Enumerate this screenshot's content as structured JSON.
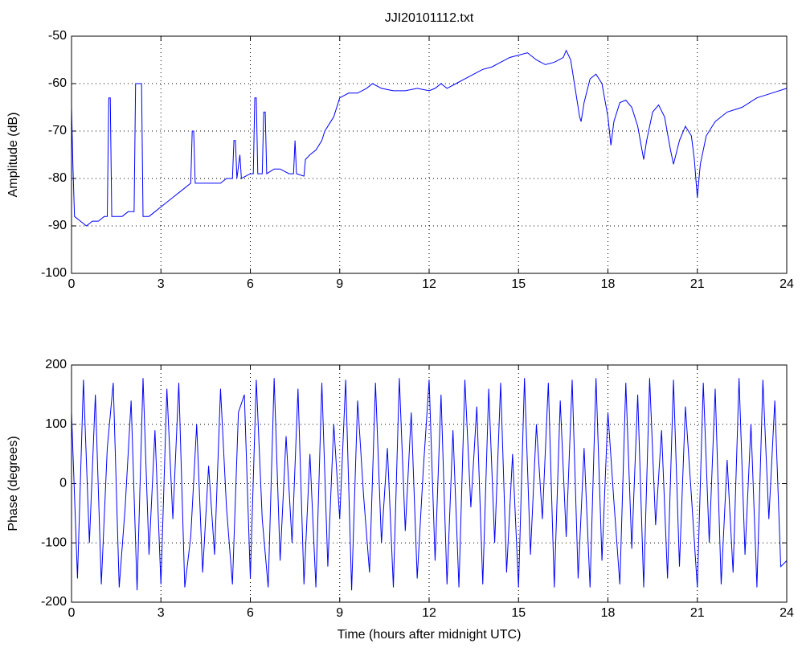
{
  "chart_data": [
    {
      "type": "line",
      "title": "JJI20101112.txt",
      "ylabel": "Amplitude (dB)",
      "color": "#0000ff",
      "grid": true,
      "xlim": [
        0,
        24
      ],
      "xticks": [
        0,
        3,
        6,
        9,
        12,
        15,
        18,
        21,
        24
      ],
      "ylim": [
        -100,
        -50
      ],
      "yticks": [
        -100,
        -90,
        -80,
        -70,
        -60,
        -50
      ],
      "x": [
        0,
        0.05,
        0.1,
        0.3,
        0.5,
        0.7,
        0.9,
        1.1,
        1.2,
        1.25,
        1.3,
        1.35,
        1.5,
        1.7,
        1.9,
        2.1,
        2.15,
        2.35,
        2.4,
        2.6,
        2.8,
        3.0,
        3.2,
        3.4,
        3.6,
        3.8,
        4.0,
        4.05,
        4.1,
        4.15,
        4.4,
        4.6,
        4.8,
        5.0,
        5.2,
        5.4,
        5.45,
        5.5,
        5.55,
        5.65,
        5.7,
        6.0,
        6.1,
        6.15,
        6.2,
        6.25,
        6.4,
        6.45,
        6.5,
        6.55,
        6.8,
        7.0,
        7.3,
        7.45,
        7.5,
        7.55,
        7.8,
        7.85,
        8.0,
        8.2,
        8.4,
        8.5,
        8.7,
        8.8,
        9.0,
        9.3,
        9.6,
        9.9,
        10.1,
        10.4,
        10.8,
        11.2,
        11.6,
        12.0,
        12.2,
        12.4,
        12.6,
        12.9,
        13.2,
        13.5,
        13.8,
        14.1,
        14.4,
        14.7,
        15.0,
        15.3,
        15.6,
        15.9,
        16.2,
        16.5,
        16.6,
        16.75,
        16.9,
        17.05,
        17.1,
        17.2,
        17.4,
        17.6,
        17.8,
        18.0,
        18.1,
        18.2,
        18.4,
        18.6,
        18.8,
        19.0,
        19.2,
        19.3,
        19.5,
        19.7,
        19.9,
        20.1,
        20.2,
        20.4,
        20.6,
        20.8,
        20.9,
        21.0,
        21.1,
        21.3,
        21.6,
        22.0,
        22.5,
        23.0,
        23.5,
        24.0
      ],
      "values": [
        -65,
        -78,
        -88,
        -89,
        -90,
        -89,
        -89,
        -88,
        -88,
        -63,
        -63,
        -88,
        -88,
        -88,
        -87,
        -87,
        -60,
        -60,
        -88,
        -88,
        -87,
        -86,
        -85,
        -84,
        -83,
        -82,
        -81,
        -70,
        -70,
        -81,
        -81,
        -81,
        -81,
        -81,
        -80,
        -80,
        -72,
        -72,
        -80,
        -75,
        -80,
        -79,
        -79,
        -63,
        -63,
        -79,
        -79,
        -66,
        -66,
        -79,
        -78,
        -78,
        -79,
        -79,
        -72,
        -79,
        -79.5,
        -76,
        -75,
        -74,
        -72,
        -70,
        -68,
        -67,
        -63,
        -62,
        -62,
        -61,
        -60,
        -61,
        -61.5,
        -61.5,
        -61,
        -61.5,
        -61,
        -60,
        -61,
        -60,
        -59,
        -58,
        -57,
        -56.5,
        -55.5,
        -54.5,
        -54,
        -53.5,
        -55,
        -56,
        -55.5,
        -54.5,
        -53,
        -55,
        -61,
        -67,
        -68,
        -64,
        -59,
        -58,
        -60,
        -67,
        -73,
        -68,
        -64,
        -63.5,
        -65,
        -69,
        -76,
        -72,
        -66,
        -64.5,
        -67,
        -74,
        -77,
        -72,
        -69,
        -71,
        -76,
        -84,
        -77,
        -71,
        -68,
        -66,
        -65,
        -63,
        -62,
        -61
      ]
    },
    {
      "type": "line",
      "ylabel": "Phase (degrees)",
      "xlabel": "Time (hours after midnight UTC)",
      "color": "#0000ff",
      "grid": true,
      "xlim": [
        0,
        24
      ],
      "xticks": [
        0,
        3,
        6,
        9,
        12,
        15,
        18,
        21,
        24
      ],
      "ylim": [
        -200,
        200
      ],
      "yticks": [
        -200,
        -100,
        0,
        100,
        200
      ],
      "x": [
        0,
        0.2,
        0.4,
        0.6,
        0.8,
        1,
        1.2,
        1.4,
        1.6,
        1.8,
        2,
        2.2,
        2.4,
        2.6,
        2.8,
        3,
        3.2,
        3.4,
        3.6,
        3.8,
        4,
        4.2,
        4.4,
        4.6,
        4.8,
        5,
        5.2,
        5.4,
        5.6,
        5.8,
        6,
        6.2,
        6.4,
        6.6,
        6.8,
        7,
        7.2,
        7.4,
        7.6,
        7.8,
        8,
        8.2,
        8.4,
        8.6,
        8.8,
        9,
        9.2,
        9.4,
        9.6,
        9.8,
        10,
        10.2,
        10.4,
        10.6,
        10.8,
        11,
        11.2,
        11.4,
        11.6,
        11.8,
        12,
        12.2,
        12.4,
        12.6,
        12.8,
        13,
        13.2,
        13.4,
        13.6,
        13.8,
        14,
        14.2,
        14.4,
        14.6,
        14.8,
        15,
        15.2,
        15.4,
        15.6,
        15.8,
        16,
        16.2,
        16.4,
        16.6,
        16.8,
        17,
        17.2,
        17.4,
        17.6,
        17.8,
        18,
        18.2,
        18.4,
        18.6,
        18.8,
        19,
        19.2,
        19.4,
        19.6,
        19.8,
        20,
        20.2,
        20.4,
        20.6,
        20.8,
        21,
        21.2,
        21.4,
        21.6,
        21.8,
        22,
        22.2,
        22.4,
        22.6,
        22.8,
        23,
        23.2,
        23.4,
        23.6,
        23.8,
        24
      ],
      "values": [
        120,
        -160,
        175,
        -100,
        150,
        -170,
        60,
        170,
        -175,
        -40,
        140,
        -180,
        178,
        -120,
        90,
        -170,
        160,
        -60,
        170,
        -175,
        -90,
        100,
        -150,
        30,
        -120,
        160,
        -40,
        -170,
        120,
        150,
        -160,
        175,
        -60,
        -175,
        178,
        -130,
        80,
        -100,
        160,
        -170,
        50,
        -175,
        170,
        -140,
        100,
        -60,
        175,
        -180,
        140,
        -20,
        -150,
        170,
        -100,
        60,
        -175,
        178,
        -80,
        120,
        -160,
        20,
        175,
        -130,
        150,
        -170,
        90,
        -175,
        175,
        -40,
        130,
        -170,
        160,
        -100,
        170,
        -150,
        50,
        -175,
        178,
        -120,
        100,
        -60,
        170,
        -175,
        140,
        -90,
        175,
        -160,
        60,
        -175,
        178,
        -130,
        120,
        -30,
        -170,
        170,
        -110,
        150,
        -175,
        178,
        -70,
        90,
        -160,
        175,
        -140,
        130,
        -20,
        -175,
        170,
        -100,
        160,
        -170,
        40,
        -150,
        178,
        -120,
        100,
        -175,
        175,
        -60,
        140,
        -140,
        -130
      ]
    }
  ]
}
